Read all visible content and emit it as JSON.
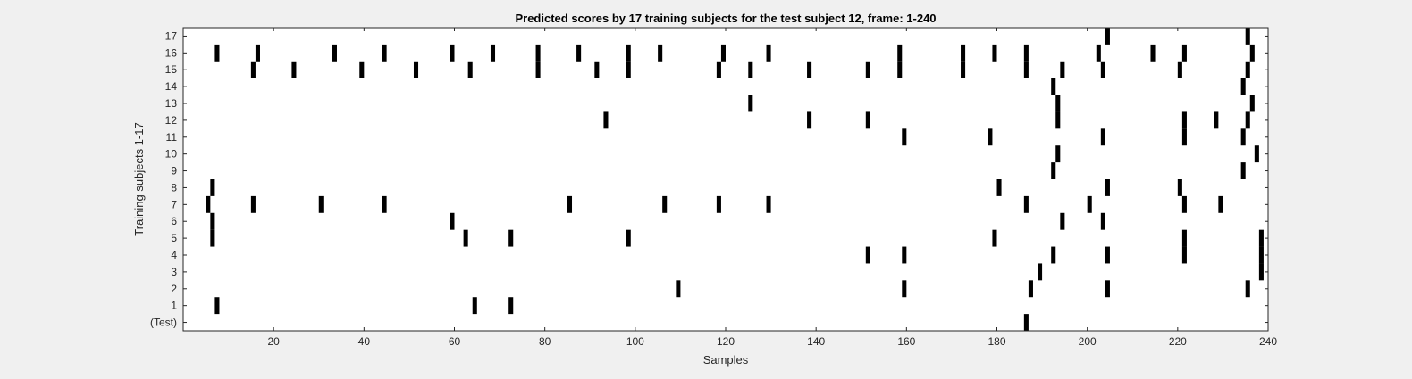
{
  "chart_data": {
    "type": "heatmap",
    "title": "Predicted scores by 17 training subjects for the test subject 12, frame: 1-240",
    "xlabel": "Samples",
    "ylabel": "Training subjects 1-17",
    "xlim": [
      1,
      240
    ],
    "xticks": [
      20,
      40,
      60,
      80,
      100,
      120,
      140,
      160,
      180,
      200,
      220,
      240
    ],
    "yticklabels": [
      "(Test)",
      "1",
      "2",
      "3",
      "4",
      "5",
      "6",
      "7",
      "8",
      "9",
      "10",
      "11",
      "12",
      "13",
      "14",
      "15",
      "16",
      "17"
    ],
    "colors": {
      "background": "#f0f0f0",
      "plot_background": "#ffffff",
      "mark": "#000000",
      "axis": "#262626"
    },
    "rows": [
      {
        "label": "(Test)",
        "samples": [
          187
        ]
      },
      {
        "label": "1",
        "samples": [
          8,
          65,
          73
        ]
      },
      {
        "label": "2",
        "samples": [
          110,
          160,
          188,
          205,
          236
        ]
      },
      {
        "label": "3",
        "samples": [
          190,
          239
        ]
      },
      {
        "label": "4",
        "samples": [
          152,
          160,
          193,
          205,
          222,
          239
        ]
      },
      {
        "label": "5",
        "samples": [
          7,
          63,
          73,
          99,
          180,
          222,
          239
        ]
      },
      {
        "label": "6",
        "samples": [
          7,
          60,
          195,
          204
        ]
      },
      {
        "label": "7",
        "samples": [
          6,
          16,
          31,
          45,
          86,
          107,
          119,
          130,
          187,
          201,
          222,
          230
        ]
      },
      {
        "label": "8",
        "samples": [
          7,
          181,
          205,
          221
        ]
      },
      {
        "label": "9",
        "samples": [
          193,
          235
        ]
      },
      {
        "label": "10",
        "samples": [
          194,
          238
        ]
      },
      {
        "label": "11",
        "samples": [
          160,
          179,
          204,
          222,
          235
        ]
      },
      {
        "label": "12",
        "samples": [
          94,
          139,
          152,
          194,
          222,
          229,
          236
        ]
      },
      {
        "label": "13",
        "samples": [
          126,
          194,
          237
        ]
      },
      {
        "label": "14",
        "samples": [
          193,
          235
        ]
      },
      {
        "label": "15",
        "samples": [
          16,
          25,
          40,
          52,
          64,
          79,
          92,
          99,
          119,
          126,
          139,
          152,
          159,
          173,
          187,
          195,
          204,
          221,
          236
        ]
      },
      {
        "label": "16",
        "samples": [
          8,
          17,
          34,
          45,
          60,
          69,
          79,
          88,
          99,
          106,
          120,
          130,
          159,
          173,
          180,
          187,
          203,
          215,
          222,
          237
        ]
      },
      {
        "label": "17",
        "samples": [
          205,
          236
        ]
      }
    ]
  }
}
